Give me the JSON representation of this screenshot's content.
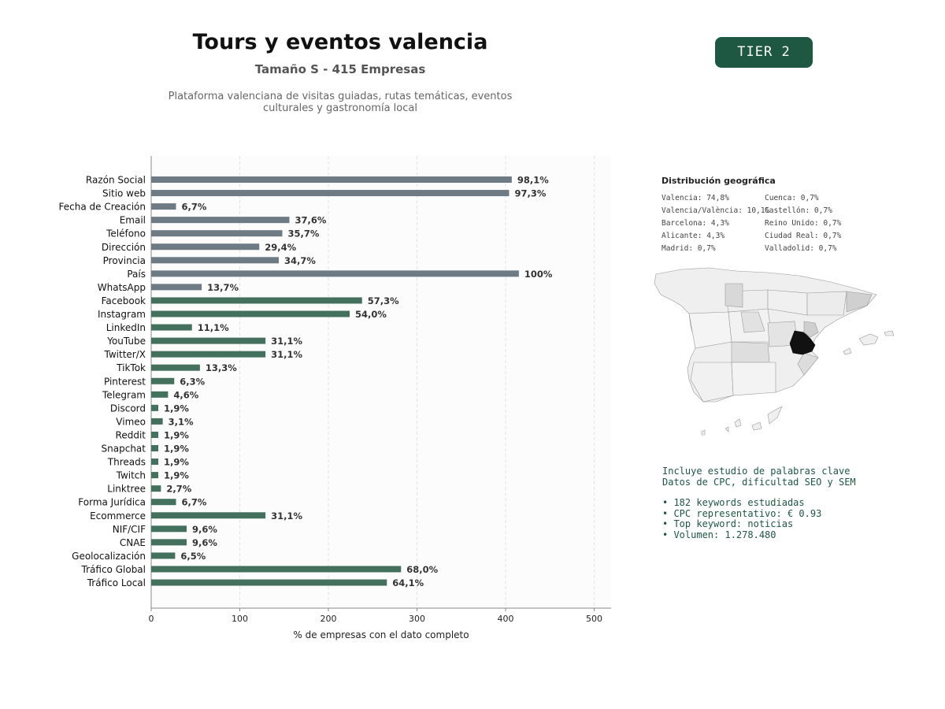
{
  "header": {
    "title": "Tours y eventos valencia",
    "subtitle": "Tamaño S - 415 Empresas",
    "description_line1": "Plataforma valenciana de visitas guiadas, rutas temáticas, eventos",
    "description_line2": "culturales y gastronomía local",
    "tier": "TIER 2"
  },
  "colors": {
    "gray_bar": "#6e7b85",
    "green_bar": "#44705e",
    "accent": "#1e5742"
  },
  "chart_data": {
    "type": "bar",
    "orientation": "horizontal",
    "xlabel": "% de empresas con el dato completo",
    "xlim": [
      0,
      520
    ],
    "xticks": [
      0,
      100,
      200,
      300,
      400,
      500
    ],
    "grid": true,
    "categories": [
      "Razón Social",
      "Sitio web",
      "Fecha de Creación",
      "Email",
      "Teléfono",
      "Dirección",
      "Provincia",
      "País",
      "WhatsApp",
      "Facebook",
      "Instagram",
      "LinkedIn",
      "YouTube",
      "Twitter/X",
      "TikTok",
      "Pinterest",
      "Telegram",
      "Discord",
      "Vimeo",
      "Reddit",
      "Snapchat",
      "Threads",
      "Twitch",
      "Linktree",
      "Forma Jurídica",
      "Ecommerce",
      "NIF/CIF",
      "CNAE",
      "Geolocalización",
      "Tráfico Global",
      "Tráfico Local"
    ],
    "values": [
      407,
      404,
      28,
      156,
      148,
      122,
      144,
      415,
      57,
      238,
      224,
      46,
      129,
      129,
      55,
      26,
      19,
      8,
      13,
      8,
      8,
      8,
      8,
      11,
      28,
      129,
      40,
      40,
      27,
      282,
      266
    ],
    "labels": [
      "98,1%",
      "97,3%",
      "6,7%",
      "37,6%",
      "35,7%",
      "29,4%",
      "34,7%",
      "100%",
      "13,7%",
      "57,3%",
      "54,0%",
      "11,1%",
      "31,1%",
      "31,1%",
      "13,3%",
      "6,3%",
      "4,6%",
      "1,9%",
      "3,1%",
      "1,9%",
      "1,9%",
      "1,9%",
      "1,9%",
      "2,7%",
      "6,7%",
      "31,1%",
      "9,6%",
      "9,6%",
      "6,5%",
      "68,0%",
      "64,1%"
    ],
    "groups": [
      "gray",
      "gray",
      "gray",
      "gray",
      "gray",
      "gray",
      "gray",
      "gray",
      "gray",
      "green",
      "green",
      "green",
      "green",
      "green",
      "green",
      "green",
      "green",
      "green",
      "green",
      "green",
      "green",
      "green",
      "green",
      "green",
      "green",
      "green",
      "green",
      "green",
      "green",
      "green",
      "green"
    ]
  },
  "geo": {
    "title": "Distribución geográfica",
    "col1": [
      "Valencia: 74,8%",
      "Valencia/València: 10,1%",
      "Barcelona: 4,3%",
      "Alicante: 4,3%",
      "Madrid: 0,7%"
    ],
    "col2": [
      "Cuenca: 0,7%",
      "Castellón: 0,7%",
      "Reino Unido: 0,7%",
      "Ciudad Real: 0,7%",
      "Valladolid: 0,7%"
    ]
  },
  "keywords": {
    "line1": "Incluye estudio de palabras clave",
    "line2": "Datos de CPC, dificultad SEO y SEM",
    "bullet1": "• 182 keywords estudiadas",
    "bullet2": "• CPC representativo: € 0.93",
    "bullet3": "• Top keyword: noticias",
    "bullet4": "• Volumen: 1.278.480"
  }
}
